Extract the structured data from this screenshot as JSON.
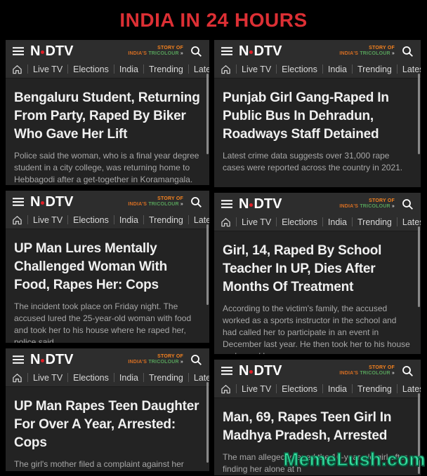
{
  "page_title": "INDIA IN 24 HOURS",
  "watermark": "MemeLush.com",
  "colors": {
    "title_red": "#dc2f34",
    "watermark_green": "#38e3a2",
    "ndtv_dot_red": "#e01e26",
    "badge_saffron": "#f5821f",
    "badge_green": "#56a05a"
  },
  "app_header": {
    "brand": "NDTV",
    "brand_n": "N",
    "brand_dtv": "DTV",
    "badge_line1": "STORY OF",
    "badge_word1": "INDIA'S",
    "badge_word2": "TRICOLOUR",
    "badge_arrows": "»",
    "nav_items": [
      "Live TV",
      "Elections",
      "India",
      "Trending",
      "Latest"
    ]
  },
  "panels": [
    {
      "headline": "Bengaluru Student, Returning From Party, Raped By Biker Who Gave Her Lift",
      "summary": "Police said the woman, who is a final year degree student in a city college, was returning home to Hebbagodi after a get-together in Koramangala."
    },
    {
      "headline": "Punjab Girl Gang-Raped In Public Bus In Dehradun, Roadways Staff Detained",
      "summary": "Latest crime data suggests over 31,000 rape cases were reported across the country in 2021."
    },
    {
      "headline": "UP Man Lures Mentally Challenged Woman With Food, Rapes Her: Cops",
      "summary": "The incident took place on Friday night. The accused lured the 25-year-old woman with food and took her to his house where he raped her, police said."
    },
    {
      "headline": "Girl, 14, Raped By School Teacher In UP, Dies After Months Of Treatment",
      "summary": "According to the victim's family, the accused worked as a sports instructor in the school and had called her to participate in an event in December last year. He then took her to his house and raped her."
    },
    {
      "headline": "UP Man Rapes Teen Daughter For Over A Year, Arrested: Cops",
      "summary": "The girl's mother filed a complaint against her husband on Friday, Circle Officer Anjani Kumar Chaturvedi said."
    },
    {
      "headline": "Man, 69, Rapes Teen Girl In Madhya Pradesh, Arrested",
      "summary": "The man allegedly raped the 16-year-old girl after finding her alone at h"
    }
  ]
}
